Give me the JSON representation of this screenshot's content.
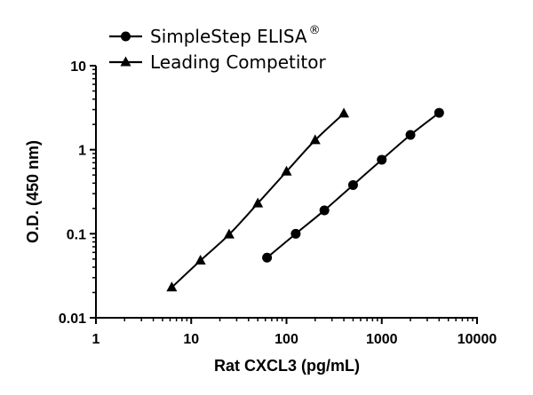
{
  "chart_data": {
    "type": "line",
    "title": "",
    "xlabel": "Rat CXCL3 (pg/mL)",
    "ylabel": "O.D. (450 nm)",
    "xscale": "log",
    "yscale": "log",
    "xlim": [
      1,
      10000
    ],
    "ylim": [
      0.01,
      10
    ],
    "xticks": [
      "1",
      "10",
      "100",
      "1000",
      "10000"
    ],
    "yticks": [
      "0.01",
      "0.1",
      "1",
      "10"
    ],
    "grid": false,
    "legend_position": "top-left",
    "series": [
      {
        "name": "SimpleStep ELISA",
        "name_superscript": "®",
        "marker": "circle",
        "color": "#000000",
        "x": [
          62.5,
          125,
          250,
          500,
          1000,
          2000,
          4000
        ],
        "y": [
          0.052,
          0.1,
          0.19,
          0.38,
          0.76,
          1.5,
          2.75
        ]
      },
      {
        "name": "Leading Competitor",
        "marker": "triangle",
        "color": "#000000",
        "x": [
          6.25,
          12.5,
          25,
          50,
          100,
          200,
          400
        ],
        "y": [
          0.023,
          0.048,
          0.098,
          0.23,
          0.55,
          1.3,
          2.7
        ]
      }
    ]
  }
}
